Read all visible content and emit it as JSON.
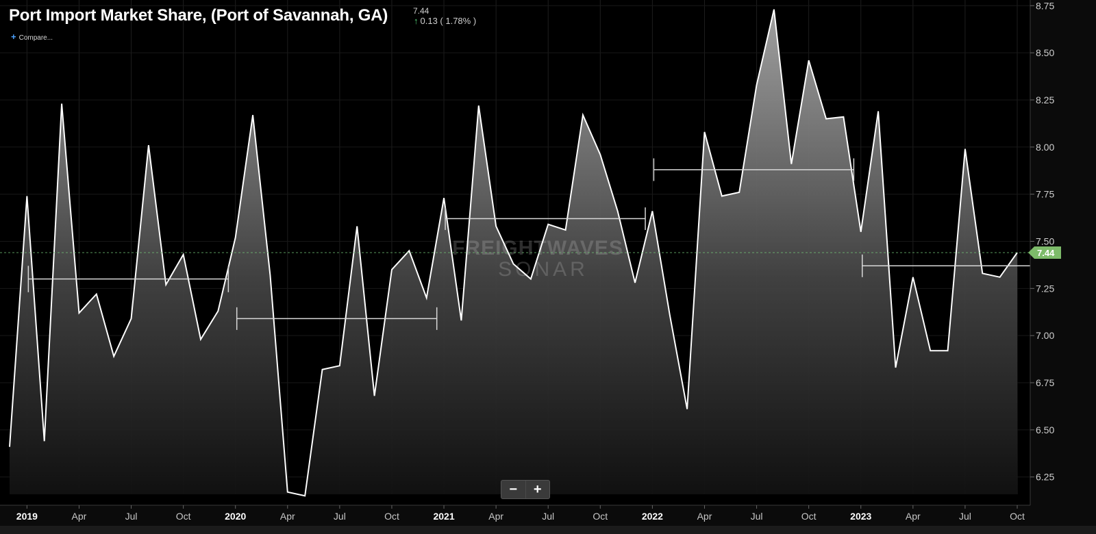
{
  "header": {
    "title": "Port Import Market Share, (Port of Savannah, GA)",
    "last_value": "7.44",
    "change": "0.13 ( 1.78% )",
    "compare_label": "Compare..."
  },
  "zoom": {
    "out_label": "−",
    "in_label": "+"
  },
  "watermark": {
    "line1": "FREIGHTWAVES",
    "line2": "SONAR"
  },
  "colors": {
    "line": "#ffffff",
    "current_value": "#7dbb6a",
    "reference_line": "#6fbf73"
  },
  "chart_data": {
    "type": "area",
    "title": "Port Import Market Share, (Port of Savannah, GA)",
    "current_value": 7.44,
    "ylim": [
      6.1,
      8.78
    ],
    "y_ticks": [
      "6.25",
      "6.50",
      "6.75",
      "7.00",
      "7.25",
      "7.50",
      "7.75",
      "8.00",
      "8.25",
      "8.50",
      "8.75"
    ],
    "x_ticks": [
      {
        "label": "2019",
        "date": "2019-01"
      },
      {
        "label": "Apr",
        "date": "2019-04"
      },
      {
        "label": "Jul",
        "date": "2019-07"
      },
      {
        "label": "Oct",
        "date": "2019-10"
      },
      {
        "label": "2020",
        "date": "2020-01"
      },
      {
        "label": "Apr",
        "date": "2020-04"
      },
      {
        "label": "Jul",
        "date": "2020-07"
      },
      {
        "label": "Oct",
        "date": "2020-10"
      },
      {
        "label": "2021",
        "date": "2021-01"
      },
      {
        "label": "Apr",
        "date": "2021-04"
      },
      {
        "label": "Jul",
        "date": "2021-07"
      },
      {
        "label": "Oct",
        "date": "2021-10"
      },
      {
        "label": "2022",
        "date": "2022-01"
      },
      {
        "label": "Apr",
        "date": "2022-04"
      },
      {
        "label": "Jul",
        "date": "2022-07"
      },
      {
        "label": "Oct",
        "date": "2022-10"
      },
      {
        "label": "2023",
        "date": "2023-01"
      },
      {
        "label": "Apr",
        "date": "2023-04"
      },
      {
        "label": "Jul",
        "date": "2023-07"
      },
      {
        "label": "Oct",
        "date": "2023-10"
      }
    ],
    "series": [
      {
        "values": [
          [
            "2018-12",
            6.41
          ],
          [
            "2019-01",
            7.74
          ],
          [
            "2019-02",
            6.44
          ],
          [
            "2019-03",
            8.23
          ],
          [
            "2019-04",
            7.12
          ],
          [
            "2019-05",
            7.22
          ],
          [
            "2019-06",
            6.89
          ],
          [
            "2019-07",
            7.09
          ],
          [
            "2019-08",
            8.01
          ],
          [
            "2019-09",
            7.27
          ],
          [
            "2019-10",
            7.43
          ],
          [
            "2019-11",
            6.98
          ],
          [
            "2019-12",
            7.13
          ],
          [
            "2020-01",
            7.52
          ],
          [
            "2020-02",
            8.17
          ],
          [
            "2020-03",
            7.32
          ],
          [
            "2020-04",
            6.17
          ],
          [
            "2020-05",
            6.15
          ],
          [
            "2020-06",
            6.82
          ],
          [
            "2020-07",
            6.84
          ],
          [
            "2020-08",
            7.58
          ],
          [
            "2020-09",
            6.68
          ],
          [
            "2020-10",
            7.35
          ],
          [
            "2020-11",
            7.45
          ],
          [
            "2020-12",
            7.2
          ],
          [
            "2021-01",
            7.73
          ],
          [
            "2021-02",
            7.08
          ],
          [
            "2021-03",
            8.22
          ],
          [
            "2021-04",
            7.58
          ],
          [
            "2021-05",
            7.38
          ],
          [
            "2021-06",
            7.3
          ],
          [
            "2021-07",
            7.59
          ],
          [
            "2021-08",
            7.56
          ],
          [
            "2021-09",
            8.17
          ],
          [
            "2021-10",
            7.96
          ],
          [
            "2021-11",
            7.66
          ],
          [
            "2021-12",
            7.28
          ],
          [
            "2022-01",
            7.66
          ],
          [
            "2022-02",
            7.11
          ],
          [
            "2022-03",
            6.61
          ],
          [
            "2022-04",
            8.08
          ],
          [
            "2022-05",
            7.74
          ],
          [
            "2022-06",
            7.76
          ],
          [
            "2022-07",
            8.33
          ],
          [
            "2022-08",
            8.73
          ],
          [
            "2022-09",
            7.91
          ],
          [
            "2022-10",
            8.46
          ],
          [
            "2022-11",
            8.15
          ],
          [
            "2022-12",
            8.16
          ],
          [
            "2023-01",
            7.55
          ],
          [
            "2023-02",
            8.19
          ],
          [
            "2023-03",
            6.83
          ],
          [
            "2023-04",
            7.31
          ],
          [
            "2023-05",
            6.92
          ],
          [
            "2023-06",
            6.92
          ],
          [
            "2023-07",
            7.99
          ],
          [
            "2023-08",
            7.33
          ],
          [
            "2023-09",
            7.31
          ],
          [
            "2023-10",
            7.44
          ]
        ]
      }
    ],
    "range_bars": [
      {
        "from": "2019-01",
        "to": "2019-12",
        "value": 7.3,
        "cap_low": 7.23,
        "cap_high": 7.37
      },
      {
        "from": "2020-01",
        "to": "2020-12",
        "value": 7.09,
        "cap_low": 7.03,
        "cap_high": 7.15
      },
      {
        "from": "2021-01",
        "to": "2021-12",
        "value": 7.62,
        "cap_low": 7.56,
        "cap_high": 7.68
      },
      {
        "from": "2022-01",
        "to": "2022-12",
        "value": 7.88,
        "cap_low": 7.82,
        "cap_high": 7.94
      },
      {
        "from": "2023-01",
        "to": "2023-12",
        "value": 7.37,
        "cap_low": 7.31,
        "cap_high": 7.43
      }
    ],
    "reference_line": 7.44,
    "grid": true,
    "y_axis_side": "right"
  }
}
